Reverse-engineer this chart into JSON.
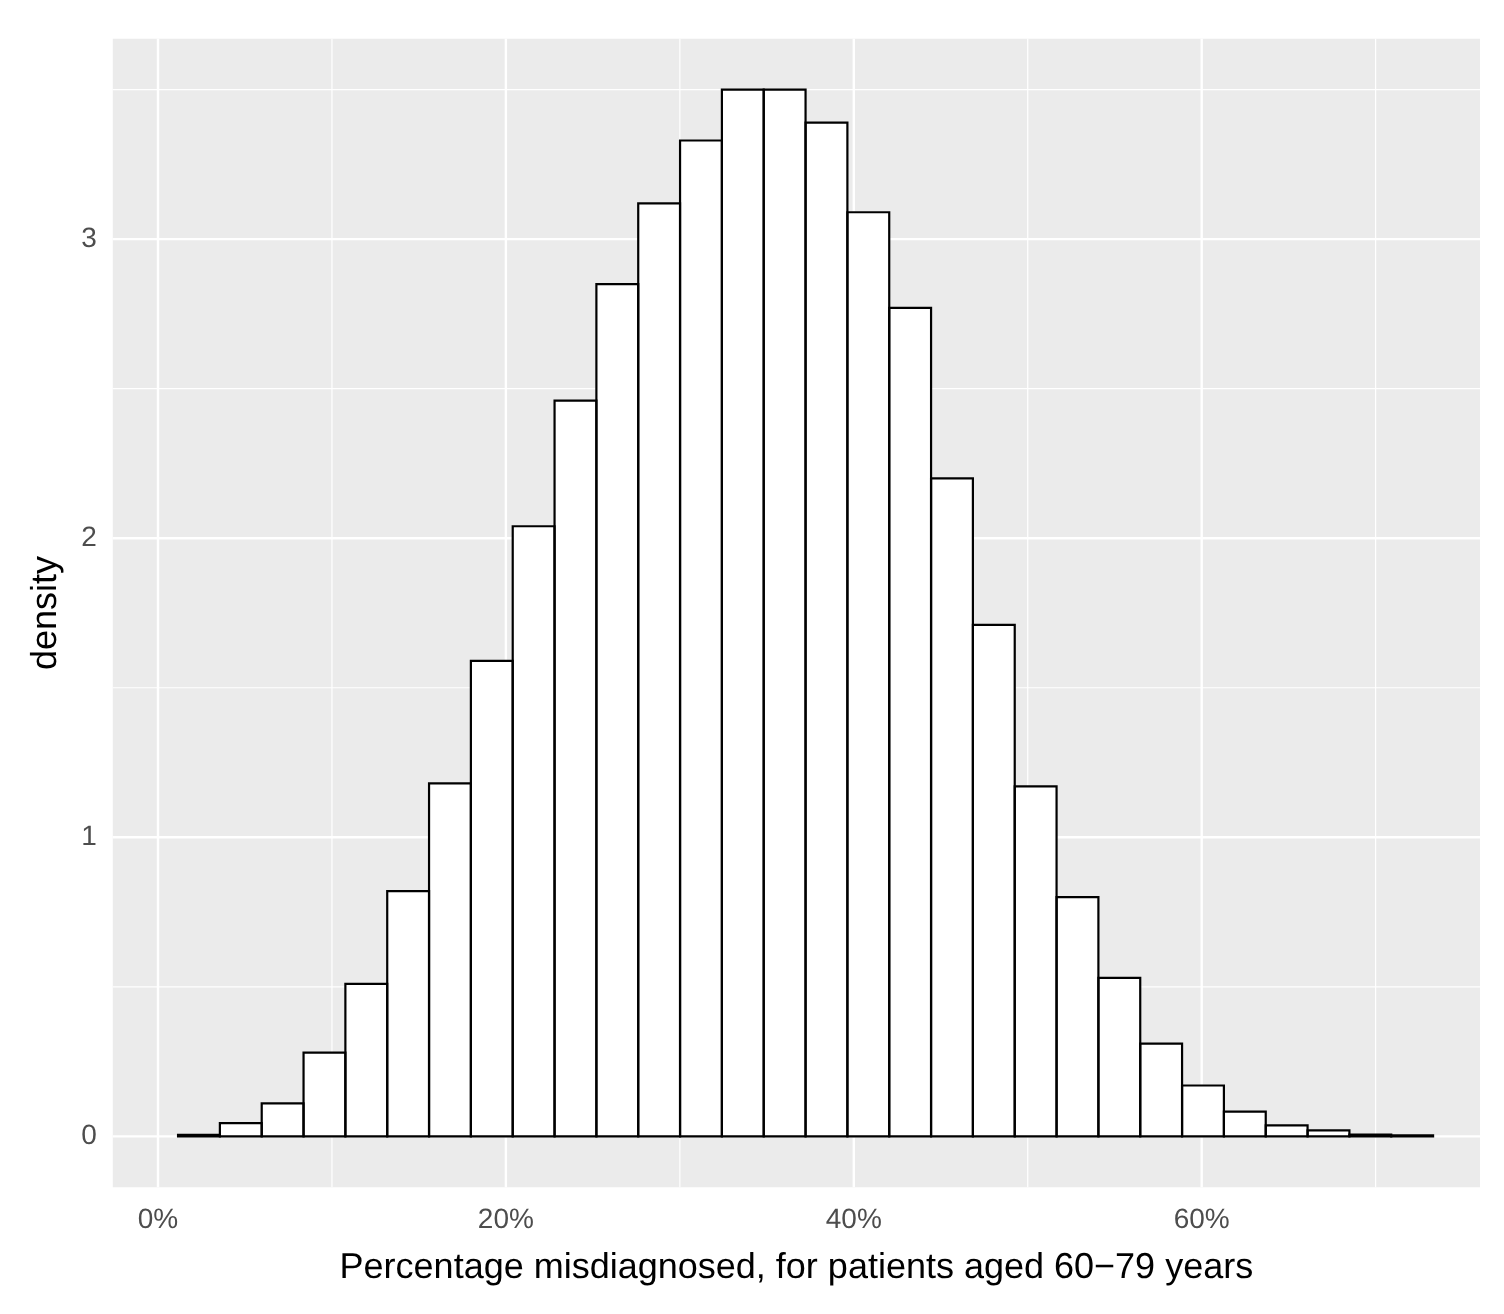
{
  "chart_data": {
    "type": "histogram",
    "xlabel": "Percentage misdiagnosed, for patients aged 60−79 years",
    "ylabel": "density",
    "bins": [
      1.15,
      3.56,
      5.96,
      8.37,
      10.77,
      13.18,
      15.58,
      17.99,
      20.39,
      22.8,
      25.2,
      27.61,
      30.01,
      32.42,
      34.82,
      37.23,
      39.63,
      42.04,
      44.44,
      46.85,
      49.25,
      51.66,
      54.06,
      56.47,
      58.87,
      61.28,
      63.68,
      66.09,
      68.49,
      70.9,
      73.3
    ],
    "values": [
      0.005,
      0.044,
      0.11,
      0.28,
      0.51,
      0.82,
      1.18,
      1.59,
      2.04,
      2.46,
      2.85,
      3.12,
      3.33,
      3.5,
      3.5,
      3.39,
      3.09,
      2.77,
      2.2,
      1.71,
      1.17,
      0.8,
      0.53,
      0.31,
      0.17,
      0.083,
      0.037,
      0.02,
      0.006,
      0.003
    ],
    "color": "#ffffff",
    "xlim": [
      -2.6,
      76
    ],
    "xticks": [
      {
        "value": 0,
        "label": "0%"
      },
      {
        "value": 20,
        "label": "20%"
      },
      {
        "value": 40,
        "label": "40%"
      },
      {
        "value": 60,
        "label": "60%"
      }
    ],
    "ylim": [
      -0.17,
      3.67
    ],
    "yticks": [
      0,
      1,
      2,
      3
    ],
    "grid": true,
    "legend": false
  }
}
